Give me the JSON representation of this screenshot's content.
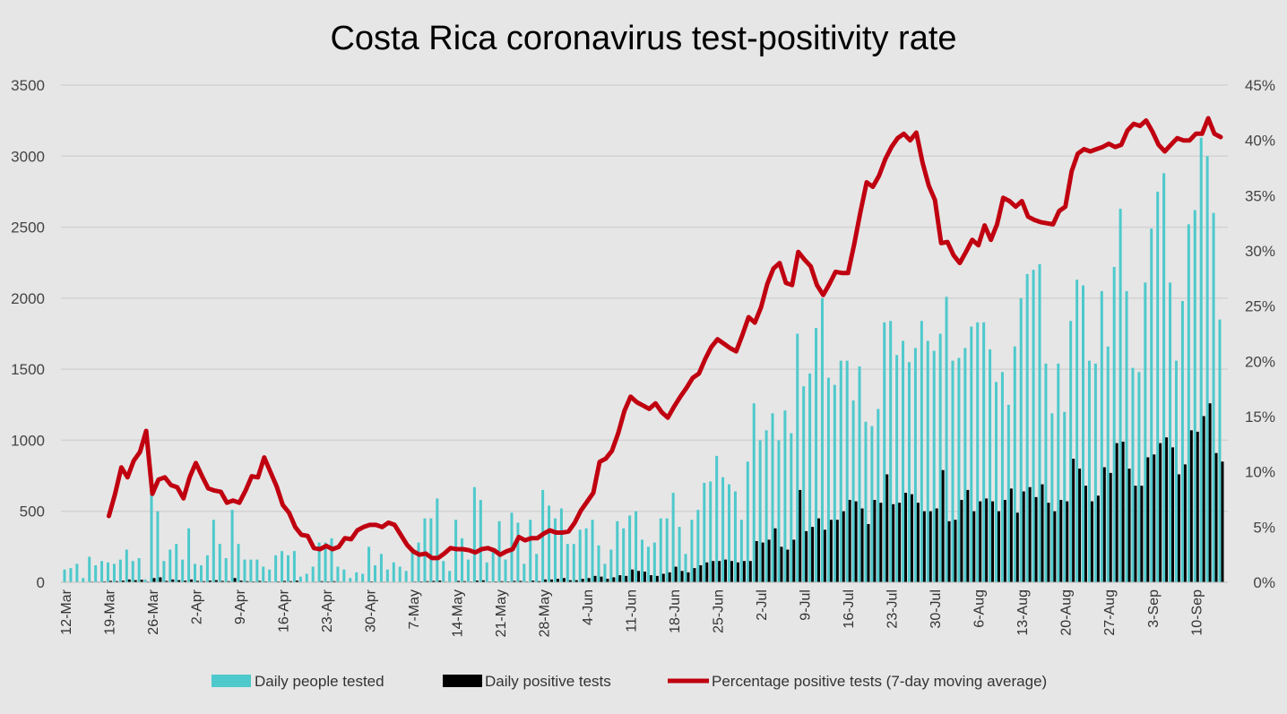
{
  "chart_data": {
    "type": "bar+line",
    "title": "Costa Rica coronavirus test-positivity rate",
    "xlabel": "",
    "ylabel": "",
    "ylim": [
      0,
      3500
    ],
    "y2lim": [
      0,
      45
    ],
    "grid": true,
    "legend_position": "bottom",
    "colors": {
      "tested": "#4ec9cc",
      "positive": "#000000",
      "rate": "#c00010",
      "background": "#e6e6e6",
      "grid": "#d2d2d2"
    },
    "y_ticks": [
      "0",
      "500",
      "1000",
      "1500",
      "2000",
      "2500",
      "3000",
      "3500"
    ],
    "y2_ticks": [
      "0%",
      "5%",
      "10%",
      "15%",
      "20%",
      "25%",
      "30%",
      "35%",
      "40%",
      "45%"
    ],
    "x_ticks": [
      "12-Mar",
      "19-Mar",
      "26-Mar",
      "2-Apr",
      "9-Apr",
      "16-Apr",
      "23-Apr",
      "30-Apr",
      "7-May",
      "14-May",
      "21-May",
      "28-May",
      "4-Jun",
      "11-Jun",
      "18-Jun",
      "25-Jun",
      "2-Jul",
      "9-Jul",
      "16-Jul",
      "23-Jul",
      "30-Jul",
      "6-Aug",
      "13-Aug",
      "20-Aug",
      "27-Aug",
      "3-Sep",
      "10-Sep"
    ],
    "series": [
      {
        "name": "Daily people tested",
        "kind": "bar",
        "values": [
          90,
          100,
          130,
          30,
          180,
          120,
          150,
          140,
          130,
          160,
          230,
          150,
          170,
          20,
          700,
          500,
          150,
          230,
          270,
          160,
          380,
          130,
          120,
          190,
          440,
          270,
          170,
          510,
          270,
          160,
          160,
          160,
          110,
          90,
          190,
          220,
          190,
          220,
          40,
          60,
          110,
          280,
          280,
          310,
          110,
          90,
          30,
          70,
          60,
          250,
          120,
          200,
          90,
          140,
          110,
          80,
          220,
          280,
          450,
          450,
          590,
          150,
          80,
          440,
          310,
          160,
          670,
          580,
          140,
          230,
          430,
          160,
          490,
          420,
          130,
          440,
          200,
          650,
          540,
          450,
          520,
          270,
          270,
          370,
          380,
          440,
          260,
          130,
          230,
          430,
          380,
          470,
          500,
          300,
          250,
          280,
          450,
          450,
          630,
          390,
          200,
          440,
          510,
          700,
          710,
          890,
          740,
          690,
          640,
          440,
          850,
          1260,
          1000,
          1070,
          1190,
          1000,
          1210,
          1050,
          1750,
          1380,
          1470,
          1790,
          2000,
          1440,
          1390,
          1560,
          1560,
          1280,
          1520,
          1130,
          1100,
          1220,
          1830,
          1840,
          1600,
          1700,
          1550,
          1650,
          1840,
          1700,
          1630,
          1750,
          2010,
          1560,
          1580,
          1650,
          1800,
          1830,
          1830,
          1640,
          1410,
          1480,
          1250,
          1660,
          2000,
          2170,
          2200,
          2240,
          1540,
          1190,
          1540,
          1200,
          1840,
          2130,
          2090,
          1560,
          1540,
          2050,
          1660,
          2220,
          2630,
          2050,
          1510,
          1480,
          2110,
          2490,
          2750,
          2880,
          2110,
          1560,
          1980,
          2520,
          2620,
          3130,
          3000,
          2600,
          1850
        ]
      },
      {
        "name": "Daily positive tests",
        "kind": "bar",
        "values": [
          2,
          2,
          3,
          1,
          5,
          4,
          6,
          10,
          8,
          12,
          20,
          15,
          18,
          5,
          30,
          35,
          10,
          20,
          15,
          12,
          20,
          10,
          8,
          12,
          15,
          10,
          8,
          30,
          12,
          8,
          6,
          10,
          6,
          4,
          6,
          10,
          8,
          12,
          2,
          3,
          4,
          8,
          6,
          8,
          4,
          3,
          1,
          2,
          3,
          6,
          3,
          4,
          2,
          3,
          3,
          2,
          5,
          6,
          8,
          10,
          12,
          4,
          3,
          10,
          8,
          5,
          12,
          14,
          5,
          6,
          8,
          6,
          10,
          10,
          5,
          12,
          8,
          20,
          20,
          25,
          30,
          15,
          15,
          25,
          30,
          45,
          40,
          25,
          35,
          50,
          45,
          90,
          80,
          75,
          50,
          45,
          60,
          70,
          110,
          80,
          70,
          100,
          120,
          140,
          150,
          150,
          160,
          150,
          140,
          150,
          150,
          290,
          280,
          300,
          380,
          250,
          230,
          300,
          650,
          360,
          390,
          450,
          370,
          440,
          440,
          500,
          580,
          570,
          520,
          410,
          580,
          560,
          760,
          550,
          560,
          630,
          620,
          560,
          500,
          500,
          520,
          790,
          430,
          440,
          580,
          650,
          500,
          570,
          590,
          570,
          500,
          580,
          660,
          490,
          640,
          670,
          600,
          690,
          560,
          500,
          580,
          570,
          870,
          800,
          680,
          570,
          610,
          810,
          770,
          980,
          990,
          800,
          680,
          680,
          880,
          900,
          980,
          1020,
          950,
          760,
          830,
          1070,
          1060,
          1170,
          1260,
          910,
          850
        ]
      },
      {
        "name": "Percentage positive tests (7-day moving average)",
        "kind": "line",
        "unit": "%",
        "values": [
          null,
          null,
          null,
          null,
          null,
          null,
          null,
          6,
          8,
          10.4,
          9.5,
          11,
          11.8,
          13.7,
          8,
          9.3,
          9.5,
          8.8,
          8.6,
          7.6,
          9.5,
          10.8,
          9.6,
          8.5,
          8.3,
          8.2,
          7.2,
          7.4,
          7.2,
          8.3,
          9.6,
          9.5,
          11.3,
          10,
          8.7,
          7,
          6.3,
          5,
          4.3,
          4.2,
          3.1,
          3,
          3.3,
          3,
          3.2,
          4,
          3.9,
          4.7,
          5.0,
          5.2,
          5.2,
          5.0,
          5.4,
          5.2,
          4.3,
          3.4,
          2.8,
          2.5,
          2.6,
          2.2,
          2.2,
          2.6,
          3.1,
          3.0,
          3.0,
          2.9,
          2.7,
          3.0,
          3.1,
          2.9,
          2.5,
          2.8,
          3.0,
          4.1,
          3.8,
          4.0,
          4.0,
          4.4,
          4.7,
          4.5,
          4.5,
          4.6,
          5.4,
          6.5,
          7.3,
          8.1,
          10.9,
          11.2,
          11.9,
          13.5,
          15.5,
          16.8,
          16.3,
          16.0,
          15.7,
          16.2,
          15.4,
          14.9,
          15.9,
          16.8,
          17.6,
          18.5,
          18.9,
          20.2,
          21.3,
          22.0,
          21.6,
          21.2,
          20.9,
          22.4,
          24.0,
          23.5,
          24.9,
          27.0,
          28.4,
          28.9,
          27.1,
          26.9,
          29.9,
          29.2,
          28.6,
          26.9,
          26.0,
          27.0,
          28.1,
          28.0,
          28.0,
          30.6,
          33.5,
          36.2,
          35.8,
          36.8,
          38.3,
          39.4,
          40.2,
          40.6,
          40.0,
          40.7,
          38.0,
          35.9,
          34.6,
          30.7,
          30.8,
          29.6,
          28.9,
          29.9,
          31.0,
          30.5,
          32.3,
          31.0,
          32.4,
          34.8,
          34.5,
          34.0,
          34.5,
          33.1,
          32.8,
          32.6,
          32.5,
          32.4,
          33.6,
          34.0,
          37.2,
          38.8,
          39.2,
          39.0,
          39.2,
          39.4,
          39.7,
          39.4,
          39.6,
          40.9,
          41.5,
          41.3,
          41.8,
          40.8,
          39.6,
          39.0,
          39.6,
          40.2,
          40.0,
          40.0,
          40.6,
          40.6,
          42.0,
          40.6,
          40.3
        ]
      }
    ]
  }
}
